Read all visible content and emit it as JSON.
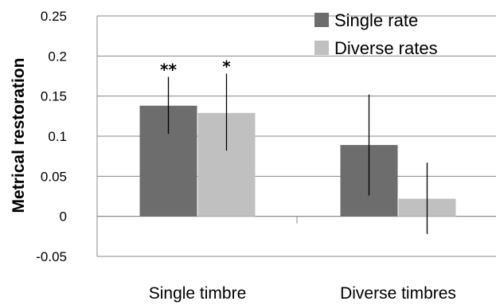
{
  "chart_data": {
    "type": "bar",
    "title": "",
    "xlabel": "",
    "ylabel": "Metrical restoration",
    "ylim": [
      -0.05,
      0.25
    ],
    "yticks": [
      -0.05,
      0,
      0.05,
      0.1,
      0.15,
      0.2,
      0.25
    ],
    "ytick_labels": [
      "-0.05",
      "0",
      "0.05",
      "0.1",
      "0.15",
      "0.2",
      "0.25"
    ],
    "grid": true,
    "legend_position": "top-right",
    "categories": [
      "Single timbre",
      "Diverse timbres"
    ],
    "series": [
      {
        "name": "Single rate",
        "color": "#6d6d6d",
        "values": [
          0.138,
          0.089
        ],
        "err_low": [
          0.103,
          0.026
        ],
        "err_high": [
          0.174,
          0.152
        ],
        "significance": [
          "**",
          ""
        ]
      },
      {
        "name": "Diverse rates",
        "color": "#c0c0c0",
        "values": [
          0.129,
          0.022
        ],
        "err_low": [
          0.082,
          -0.022
        ],
        "err_high": [
          0.178,
          0.067
        ],
        "significance": [
          "*",
          ""
        ]
      }
    ]
  }
}
